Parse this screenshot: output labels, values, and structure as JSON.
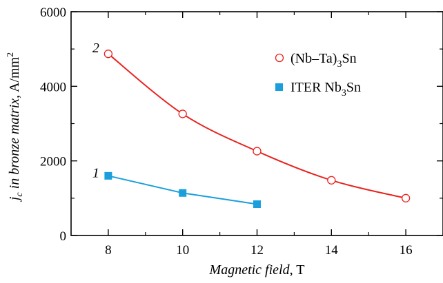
{
  "chart_data": {
    "type": "line",
    "x_label": {
      "main": "Magnetic field",
      "unit": ", T"
    },
    "y_label": {
      "j": "j",
      "sub": "c",
      "main": " in bronze matrix",
      "unit": ", A/mm",
      "sup": "2"
    },
    "xlim": [
      7,
      17
    ],
    "ylim": [
      0,
      6000
    ],
    "x_ticks": [
      8,
      10,
      12,
      14,
      16
    ],
    "x_tick_labels": [
      "8",
      "10",
      "12",
      "14",
      "16"
    ],
    "y_ticks": [
      0,
      2000,
      4000,
      6000
    ],
    "y_tick_labels": [
      "0",
      "2000",
      "4000",
      "6000"
    ],
    "grid": false,
    "legend_position": "top-right",
    "series": [
      {
        "name": "(Nb–Ta)3Sn",
        "legend_parts": [
          "(Nb–Ta)",
          "3",
          "Sn"
        ],
        "annotation": "2",
        "marker": "open-circle",
        "color": "#e8231e",
        "x": [
          8,
          10,
          12,
          14,
          16
        ],
        "y": [
          4870,
          3260,
          2260,
          1480,
          1000
        ]
      },
      {
        "name": "ITER Nb3Sn",
        "legend_parts": [
          "ITER Nb",
          "3",
          "Sn"
        ],
        "annotation": "1",
        "marker": "filled-square",
        "color": "#1a9fdc",
        "x": [
          8,
          10,
          12
        ],
        "y": [
          1600,
          1140,
          840
        ]
      }
    ]
  }
}
